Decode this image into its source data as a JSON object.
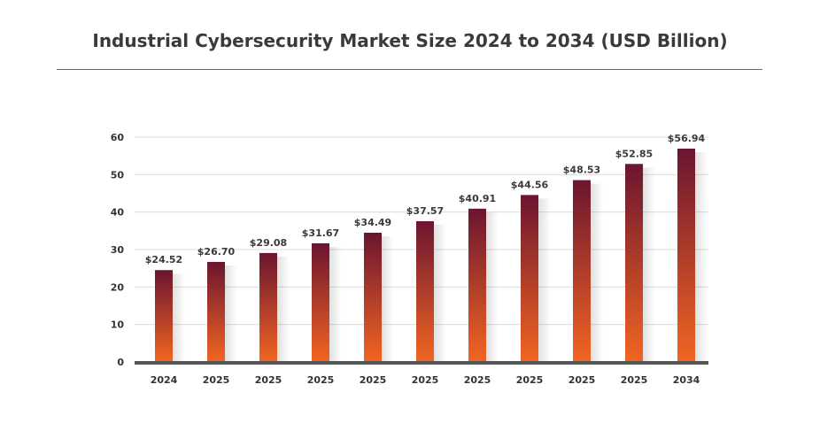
{
  "chart_data": {
    "type": "bar",
    "title": "Industrial Cybersecurity Market Size 2024 to 2034 (USD Billion)",
    "categories": [
      "2024",
      "2025",
      "2025",
      "2025",
      "2025",
      "2025",
      "2025",
      "2025",
      "2025",
      "2025",
      "2034"
    ],
    "values": [
      24.52,
      26.7,
      29.08,
      31.67,
      34.49,
      37.57,
      40.91,
      44.56,
      48.53,
      52.85,
      56.94
    ],
    "value_labels": [
      "$24.52",
      "$26.70",
      "$29.08",
      "$31.67",
      "$34.49",
      "$37.57",
      "$40.91",
      "$44.56",
      "$48.53",
      "$52.85",
      "$56.94"
    ],
    "y_ticks": [
      "0",
      "10",
      "20",
      "30",
      "40",
      "50",
      "60"
    ],
    "xlabel": "",
    "ylabel": "",
    "ylim": [
      0,
      60
    ],
    "grid": true,
    "colors": {
      "bar_top": "#6b1530",
      "bar_bottom": "#f26522",
      "grid": "#dcdcdc",
      "axis": "#555555"
    }
  }
}
